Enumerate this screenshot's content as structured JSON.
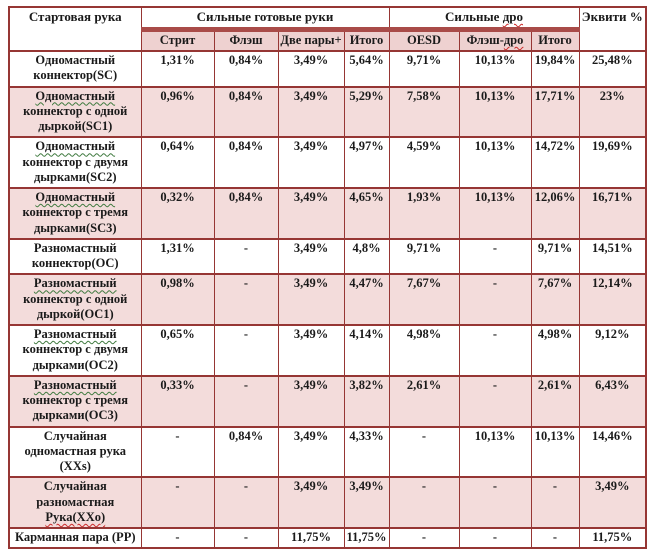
{
  "table": {
    "corner_header": "Стартовая рука",
    "equity_header": "Эквити %",
    "group_ready": {
      "parts": [
        {
          "t": "Сильные готовые руки"
        }
      ]
    },
    "group_draw": {
      "parts": [
        {
          "t": "Сильные "
        },
        {
          "t": "дро",
          "u": "red"
        }
      ]
    },
    "subheaders": [
      {
        "parts": [
          {
            "t": "Стрит"
          }
        ]
      },
      {
        "parts": [
          {
            "t": "Флэш"
          }
        ]
      },
      {
        "parts": [
          {
            "t": "Две пары+"
          }
        ]
      },
      {
        "parts": [
          {
            "t": "Итого"
          }
        ]
      },
      {
        "parts": [
          {
            "t": "OESD"
          }
        ]
      },
      {
        "parts": [
          {
            "t": "Флэш-"
          },
          {
            "t": "дро",
            "u": "red"
          }
        ]
      },
      {
        "parts": [
          {
            "t": "Итого"
          }
        ]
      }
    ],
    "rows": [
      {
        "shaded": false,
        "name_parts": [
          {
            "t": "Одномастный коннектор(SC)"
          }
        ],
        "values": [
          "1,31%",
          "0,84%",
          "3,49%",
          "5,64%",
          "9,71%",
          "10,13%",
          "19,84%",
          "25,48%"
        ]
      },
      {
        "shaded": true,
        "name_parts": [
          {
            "t": "Одномастный",
            "u": "green"
          },
          {
            "t": " коннектор с одной дыркой(SC1)"
          }
        ],
        "values": [
          "0,96%",
          "0,84%",
          "3,49%",
          "5,29%",
          "7,58%",
          "10,13%",
          "17,71%",
          "23%"
        ]
      },
      {
        "shaded": false,
        "name_parts": [
          {
            "t": "Одномастный",
            "u": "green"
          },
          {
            "t": " коннектор с двумя дырками(SC2)"
          }
        ],
        "values": [
          "0,64%",
          "0,84%",
          "3,49%",
          "4,97%",
          "4,59%",
          "10,13%",
          "14,72%",
          "19,69%"
        ]
      },
      {
        "shaded": true,
        "name_parts": [
          {
            "t": "Одномастный",
            "u": "green"
          },
          {
            "t": " коннектор с тремя дырками(SC3)"
          }
        ],
        "values": [
          "0,32%",
          "0,84%",
          "3,49%",
          "4,65%",
          "1,93%",
          "10,13%",
          "12,06%",
          "16,71%"
        ]
      },
      {
        "shaded": false,
        "name_parts": [
          {
            "t": "Разномастный коннектор(OC)"
          }
        ],
        "values": [
          "1,31%",
          "-",
          "3,49%",
          "4,8%",
          "9,71%",
          "-",
          "9,71%",
          "14,51%"
        ]
      },
      {
        "shaded": true,
        "name_parts": [
          {
            "t": "Разномастный",
            "u": "green"
          },
          {
            "t": " коннектор с одной дыркой(OC1)"
          }
        ],
        "values": [
          "0,98%",
          "-",
          "3,49%",
          "4,47%",
          "7,67%",
          "-",
          "7,67%",
          "12,14%"
        ]
      },
      {
        "shaded": false,
        "name_parts": [
          {
            "t": "Разномастный",
            "u": "green"
          },
          {
            "t": " коннектор с двумя дырками(OC2)"
          }
        ],
        "values": [
          "0,65%",
          "-",
          "3,49%",
          "4,14%",
          "4,98%",
          "-",
          "4,98%",
          "9,12%"
        ]
      },
      {
        "shaded": true,
        "name_parts": [
          {
            "t": "Разномастный",
            "u": "green"
          },
          {
            "t": " коннектор с тремя дырками(OC3)"
          }
        ],
        "values": [
          "0,33%",
          "-",
          "3,49%",
          "3,82%",
          "2,61%",
          "-",
          "2,61%",
          "6,43%"
        ]
      },
      {
        "shaded": false,
        "name_parts": [
          {
            "t": "Случайная одномастная рука (XXs)"
          }
        ],
        "values": [
          "-",
          "0,84%",
          "3,49%",
          "4,33%",
          "-",
          "10,13%",
          "10,13%",
          "14,46%"
        ]
      },
      {
        "shaded": true,
        "name_parts": [
          {
            "t": "Случайная разномастная "
          },
          {
            "t": "Рука(XXo)",
            "u": "red"
          }
        ],
        "values": [
          "-",
          "-",
          "3,49%",
          "3,49%",
          "-",
          "-",
          "-",
          "3,49%"
        ]
      },
      {
        "shaded": false,
        "name_parts": [
          {
            "t": "Карманная пара (PP)"
          }
        ],
        "values": [
          "-",
          "-",
          "11,75%",
          "11,75%",
          "-",
          "-",
          "-",
          "11,75%"
        ]
      }
    ],
    "colors": {
      "border": "#963634",
      "band": "#a94b48",
      "row_pink": "#f3dcdb",
      "subheader_pink": "#eed1d0",
      "squiggle_green": "#3f7a3f",
      "squiggle_red": "#cc2b2b"
    }
  }
}
